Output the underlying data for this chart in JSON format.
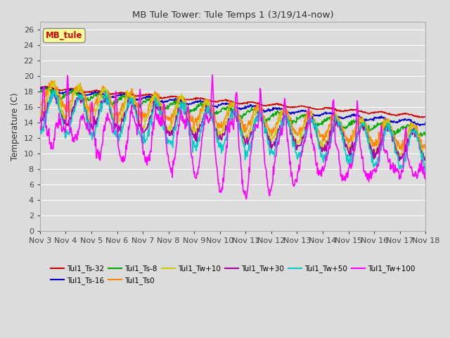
{
  "title": "MB Tule Tower: Tule Temps 1 (3/19/14-now)",
  "ylabel": "Temperature (C)",
  "ylim": [
    0,
    27
  ],
  "yticks": [
    0,
    2,
    4,
    6,
    8,
    10,
    12,
    14,
    16,
    18,
    20,
    22,
    24,
    26
  ],
  "xtick_labels": [
    "Nov 3",
    "Nov 4",
    "Nov 5",
    "Nov 6",
    "Nov 7",
    "Nov 8",
    "Nov 9",
    "Nov 10",
    "Nov 11",
    "Nov 12",
    "Nov 13",
    "Nov 14",
    "Nov 15",
    "Nov 16",
    "Nov 17",
    "Nov 18"
  ],
  "background_color": "#dcdcdc",
  "plot_bg_color": "#dcdcdc",
  "legend_box_color": "#ffff99",
  "legend_box_label": "MB_tule",
  "series_order": [
    "Tul1_Ts-32",
    "Tul1_Ts-16",
    "Tul1_Ts-8",
    "Tul1_Ts0",
    "Tul1_Tw+10",
    "Tul1_Tw+30",
    "Tul1_Tw+50",
    "Tul1_Tw+100"
  ],
  "series": {
    "Tul1_Ts-32": {
      "color": "#cc0000",
      "lw": 1.2
    },
    "Tul1_Ts-16": {
      "color": "#0000cc",
      "lw": 1.2
    },
    "Tul1_Ts-8": {
      "color": "#00aa00",
      "lw": 1.2
    },
    "Tul1_Ts0": {
      "color": "#ff8800",
      "lw": 1.2
    },
    "Tul1_Tw+10": {
      "color": "#cccc00",
      "lw": 1.2
    },
    "Tul1_Tw+30": {
      "color": "#aa00aa",
      "lw": 1.2
    },
    "Tul1_Tw+50": {
      "color": "#00cccc",
      "lw": 1.2
    },
    "Tul1_Tw+100": {
      "color": "#ff00ff",
      "lw": 1.2
    }
  },
  "legend_entries": [
    [
      "Tul1_Ts-32",
      "#cc0000"
    ],
    [
      "Tul1_Ts-16",
      "#0000cc"
    ],
    [
      "Tul1_Ts-8",
      "#00aa00"
    ],
    [
      "Tul1_Ts0",
      "#ff8800"
    ],
    [
      "Tul1_Tw+10",
      "#cccc00"
    ],
    [
      "Tul1_Tw+30",
      "#aa00aa"
    ],
    [
      "Tul1_Tw+50",
      "#00cccc"
    ],
    [
      "Tul1_Tw+100",
      "#ff00ff"
    ]
  ]
}
